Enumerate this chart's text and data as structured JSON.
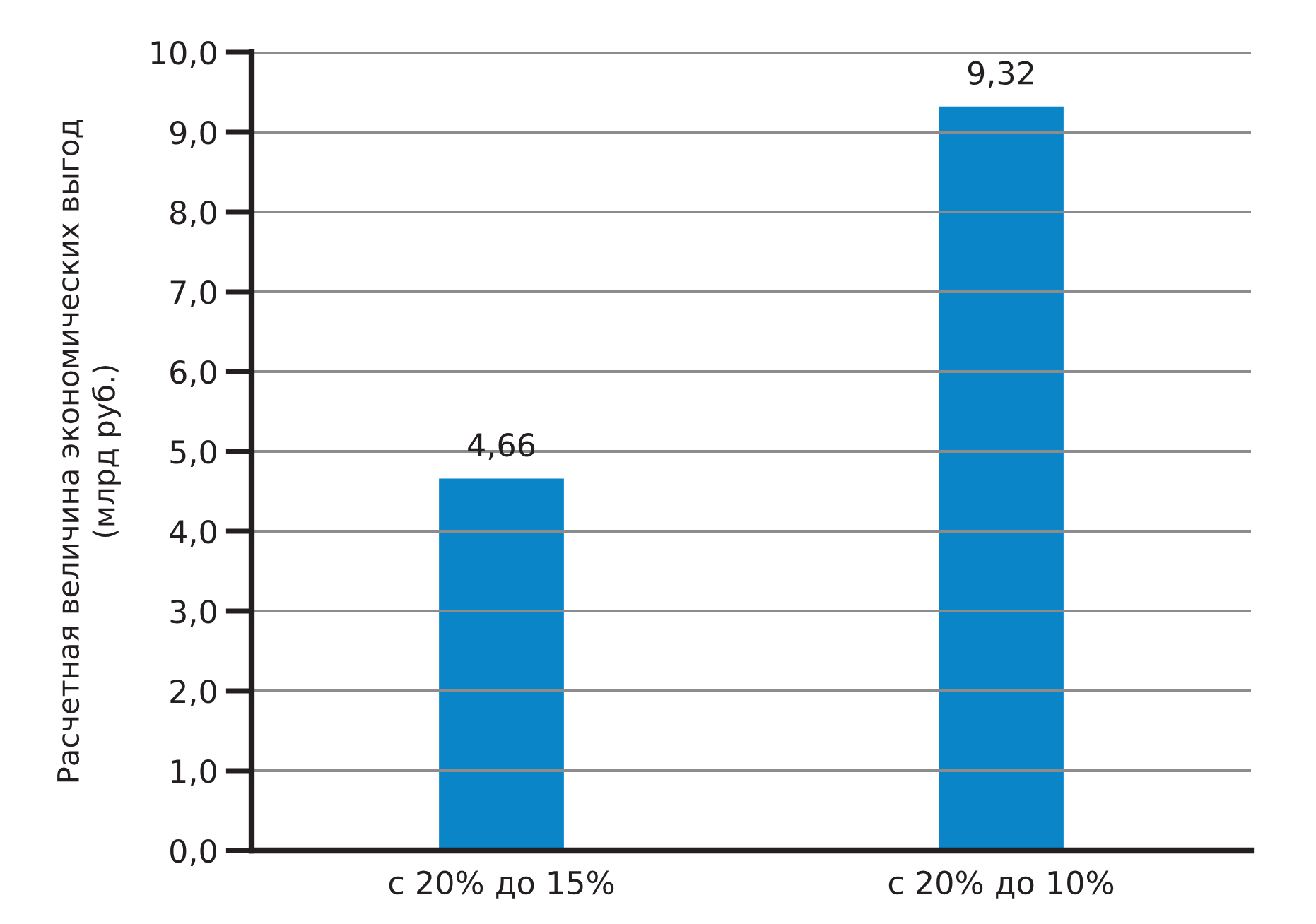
{
  "chart_data": {
    "type": "bar",
    "ylabel": "Расчетная величина экономических выгод\n(млрд руб.)",
    "categories": [
      "с 20% до 15%",
      "с 20% до 10%"
    ],
    "values": [
      4.66,
      9.32
    ],
    "color": "#0a86c8",
    "value_labels": [
      "4,66",
      "9,32"
    ],
    "ylim": [
      0,
      10
    ],
    "yticks": [
      {
        "value": 0,
        "label": "0,0"
      },
      {
        "value": 1,
        "label": "1,0"
      },
      {
        "value": 2,
        "label": "2,0"
      },
      {
        "value": 3,
        "label": "3,0"
      },
      {
        "value": 4,
        "label": "4,0"
      },
      {
        "value": 5,
        "label": "5,0"
      },
      {
        "value": 6,
        "label": "6,0"
      },
      {
        "value": 7,
        "label": "7,0"
      },
      {
        "value": 8,
        "label": "8,0"
      },
      {
        "value": 9,
        "label": "9,0"
      },
      {
        "value": 10,
        "label": "10,0"
      }
    ],
    "grid": "y",
    "legend": false
  }
}
